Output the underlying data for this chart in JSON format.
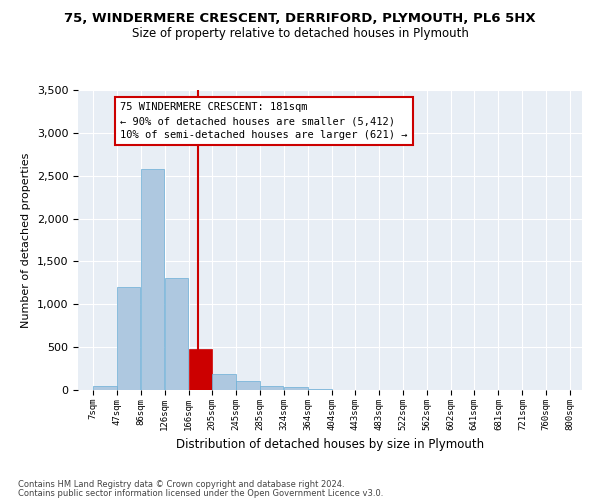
{
  "title1": "75, WINDERMERE CRESCENT, DERRIFORD, PLYMOUTH, PL6 5HX",
  "title2": "Size of property relative to detached houses in Plymouth",
  "xlabel": "Distribution of detached houses by size in Plymouth",
  "ylabel": "Number of detached properties",
  "footer1": "Contains HM Land Registry data © Crown copyright and database right 2024.",
  "footer2": "Contains public sector information licensed under the Open Government Licence v3.0.",
  "property_size": 181,
  "annotation_line1": "75 WINDERMERE CRESCENT: 181sqm",
  "annotation_line2": "← 90% of detached houses are smaller (5,412)",
  "annotation_line3": "10% of semi-detached houses are larger (621) →",
  "bar_edges": [
    7,
    47,
    86,
    126,
    166,
    205,
    245,
    285,
    324,
    364,
    404,
    443,
    483,
    522,
    562,
    602,
    641,
    681,
    721,
    760,
    800
  ],
  "bar_heights": [
    50,
    1200,
    2580,
    1310,
    480,
    190,
    110,
    50,
    30,
    10,
    5,
    2,
    1,
    0,
    0,
    0,
    0,
    0,
    0,
    0
  ],
  "bar_color": "#aec8e0",
  "bar_edge_color": "#6baed6",
  "red_line_color": "#cc0000",
  "red_bar_color": "#cc0000",
  "background_color": "#e8eef5",
  "grid_color": "#ffffff",
  "ylim": [
    0,
    3500
  ],
  "yticks": [
    0,
    500,
    1000,
    1500,
    2000,
    2500,
    3000,
    3500
  ]
}
